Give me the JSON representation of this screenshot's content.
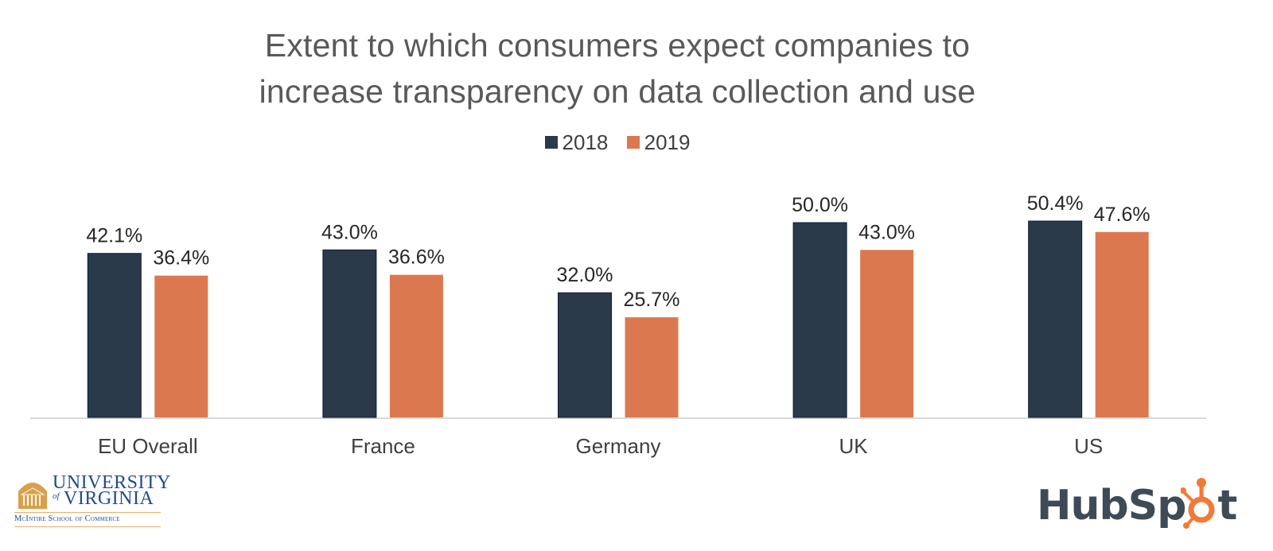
{
  "chart_data": {
    "type": "bar",
    "title": "Extent to which consumers expect companies to increase transparency on data collection and use",
    "title_lines": [
      "Extent to which consumers expect companies to",
      "increase transparency on data collection and use"
    ],
    "xlabel": "",
    "ylabel": "",
    "ylim": [
      0,
      55
    ],
    "grid": false,
    "legend_position": "top-center",
    "categories": [
      "EU Overall",
      "France",
      "Germany",
      "UK",
      "US"
    ],
    "series": [
      {
        "name": "2018",
        "color": "#2b3a4a",
        "values": [
          42.1,
          43.0,
          32.0,
          50.0,
          50.4
        ],
        "labels": [
          "42.1%",
          "43.0%",
          "32.0%",
          "50.0%",
          "50.4%"
        ]
      },
      {
        "name": "2019",
        "color": "#dc7850",
        "values": [
          36.4,
          36.6,
          25.7,
          43.0,
          47.6
        ],
        "labels": [
          "36.4%",
          "36.6%",
          "25.7%",
          "43.0%",
          "47.6%"
        ]
      }
    ]
  },
  "logos": {
    "uva": {
      "line1": "UNIVERSITY",
      "of": "of",
      "line2": "VIRGINIA",
      "school": "McIntire School of Commerce",
      "color": "#1f4b8e",
      "accent": "#d9a04a"
    },
    "hubspot": {
      "text_left": "HubSp",
      "text_right": "t",
      "color": "#3e4b57",
      "accent": "#f07b36"
    }
  }
}
